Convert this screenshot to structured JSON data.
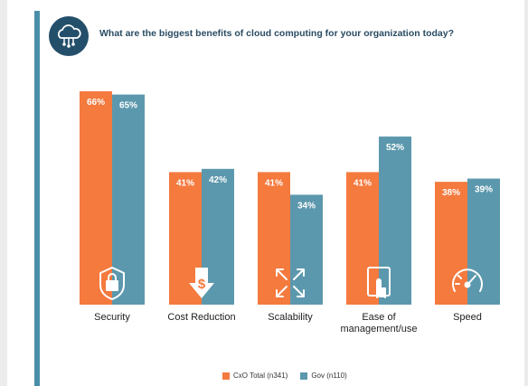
{
  "question": "What are the biggest benefits of cloud computing for your organization today?",
  "header_icon": "cloud-network-icon",
  "colors": {
    "cxo": "#f47a3e",
    "gov": "#5c98ad",
    "accent": "#244f6b"
  },
  "chart_data": {
    "type": "bar",
    "title": "What are the biggest benefits of cloud computing for your organization today?",
    "categories": [
      "Security",
      "Cost Reduction",
      "Scalability",
      "Ease of management/use",
      "Speed"
    ],
    "category_lines": [
      [
        "Security"
      ],
      [
        "Cost Reduction"
      ],
      [
        "Scalability"
      ],
      [
        "Ease of",
        "management/use"
      ],
      [
        "Speed"
      ]
    ],
    "category_icons": [
      "shield-lock-icon",
      "dollar-down-icon",
      "expand-arrows-icon",
      "tablet-touch-icon",
      "speedometer-icon"
    ],
    "series": [
      {
        "name": "CxO Total (n341)",
        "values": [
          66,
          41,
          41,
          41,
          38
        ],
        "labels": [
          "66%",
          "41%",
          "41%",
          "41%",
          "38%"
        ]
      },
      {
        "name": "Gov (n110)",
        "values": [
          65,
          42,
          34,
          52,
          39
        ],
        "labels": [
          "65%",
          "42%",
          "34%",
          "52%",
          "39%"
        ]
      }
    ],
    "ylim": [
      0,
      66
    ],
    "grid": false,
    "legend": "bottom-center"
  }
}
